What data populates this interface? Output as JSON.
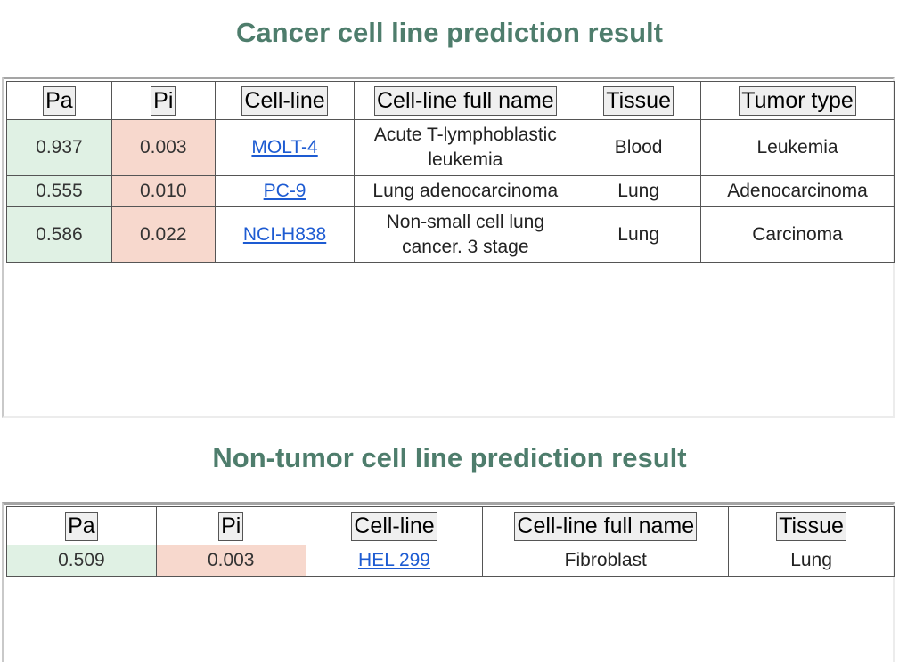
{
  "cancer": {
    "title": "Cancer cell line prediction result",
    "headers": [
      "Pa",
      "Pi",
      "Cell-line",
      "Cell-line full name",
      "Tissue",
      "Tumor type"
    ],
    "rows": [
      {
        "pa": "0.937",
        "pi": "0.003",
        "cell_line": "MOLT-4",
        "full_name": "Acute T-lymphoblastic leukemia",
        "tissue": "Blood",
        "tumor_type": "Leukemia"
      },
      {
        "pa": "0.555",
        "pi": "0.010",
        "cell_line": "PC-9",
        "full_name": "Lung adenocarcinoma",
        "tissue": "Lung",
        "tumor_type": "Adenocarcinoma"
      },
      {
        "pa": "0.586",
        "pi": "0.022",
        "cell_line": "NCI-H838",
        "full_name": "Non-small cell lung cancer. 3 stage",
        "tissue": "Lung",
        "tumor_type": "Carcinoma"
      }
    ]
  },
  "non_tumor": {
    "title": "Non-tumor cell line prediction result",
    "headers": [
      "Pa",
      "Pi",
      "Cell-line",
      "Cell-line full name",
      "Tissue"
    ],
    "rows": [
      {
        "pa": "0.509",
        "pi": "0.003",
        "cell_line": "HEL 299",
        "full_name": "Fibroblast",
        "tissue": "Lung"
      }
    ]
  },
  "colors": {
    "title": "#4e7d6c",
    "pa_cell": "#e0f1e4",
    "pi_cell": "#f7d8cd",
    "link": "#1d5bd2"
  }
}
